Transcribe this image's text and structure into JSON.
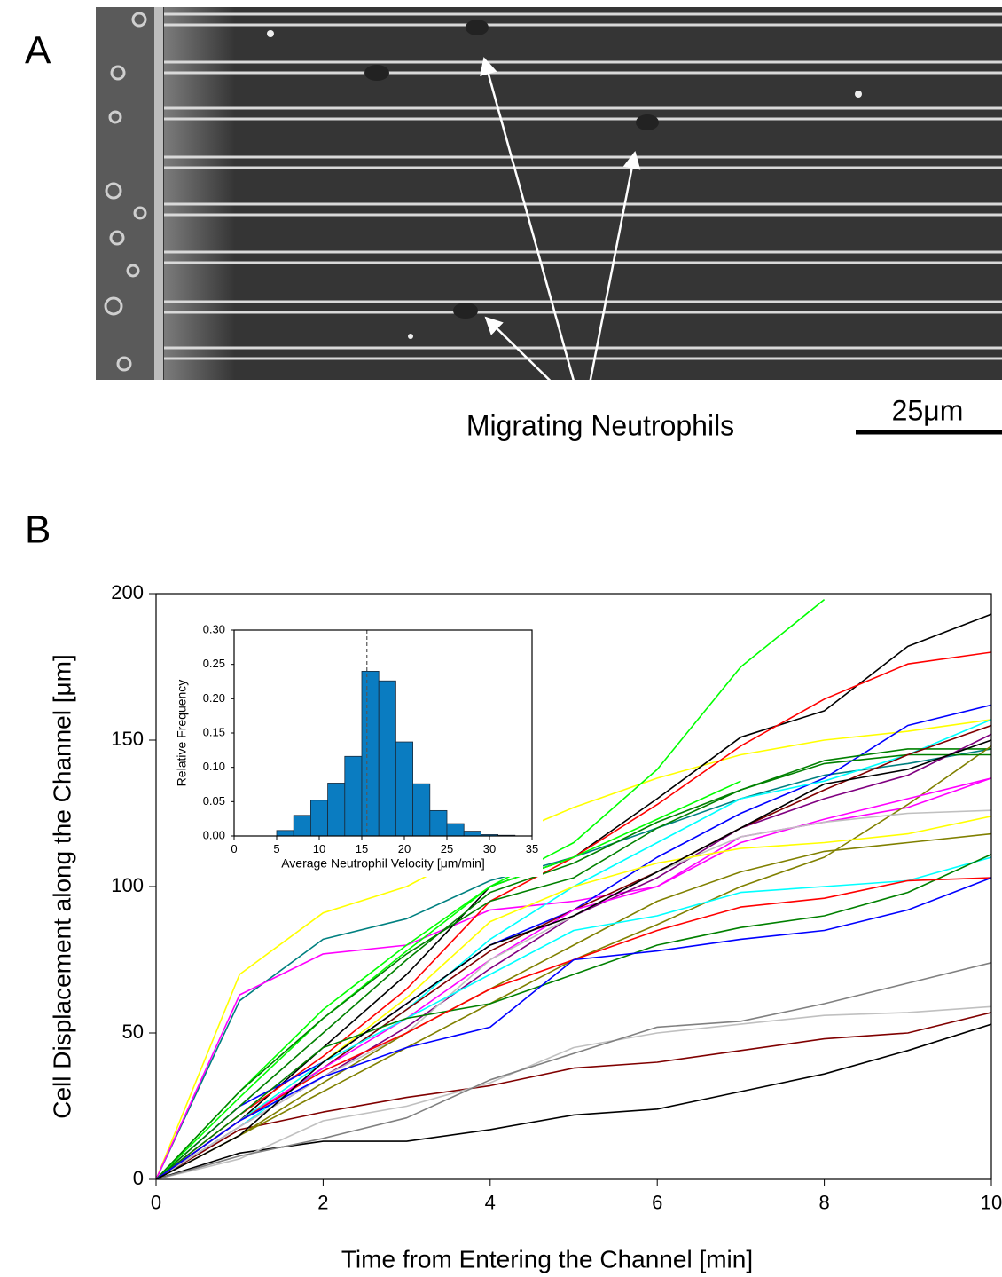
{
  "panels": {
    "a": {
      "label": "A",
      "annotation": "Migrating Neutrophils",
      "scale_bar": "25μm"
    },
    "b": {
      "label": "B"
    }
  },
  "chart_data": [
    {
      "type": "line",
      "x_label": "Time from Entering the Channel [min]",
      "y_label": "Cell Displacement along the Channel [μm]",
      "x": [
        0,
        1,
        2,
        3,
        4,
        5,
        6,
        7,
        8,
        9,
        10
      ],
      "xlim": [
        0,
        10
      ],
      "xticks": [
        0,
        2,
        4,
        6,
        8,
        10
      ],
      "ylim": [
        0,
        200
      ],
      "yticks": [
        0,
        50,
        100,
        150,
        200
      ],
      "series": [
        {
          "color": "#000000",
          "values": [
            0,
            9,
            13,
            13,
            17,
            22,
            24,
            30,
            36,
            44,
            53
          ]
        },
        {
          "color": "#800000",
          "values": [
            0,
            17,
            23,
            28,
            32,
            38,
            40,
            44,
            48,
            50,
            57
          ]
        },
        {
          "color": "#c0c0c0",
          "values": [
            0,
            7,
            20,
            25,
            33,
            45,
            50,
            53,
            56,
            57,
            59
          ]
        },
        {
          "color": "#808080",
          "values": [
            0,
            8,
            14,
            21,
            34,
            43,
            52,
            54,
            60,
            67,
            74
          ]
        },
        {
          "color": "#ffff00",
          "values": [
            0,
            70,
            91,
            100,
            115,
            127,
            137,
            145,
            150,
            153,
            157
          ]
        },
        {
          "color": "#008080",
          "values": [
            0,
            61,
            82,
            89,
            102,
            110,
            120,
            130,
            138,
            142,
            147
          ]
        },
        {
          "color": "#ff00ff",
          "values": [
            0,
            63,
            77,
            80,
            92,
            95,
            100,
            117,
            122,
            127,
            137
          ]
        },
        {
          "color": "#00ff00",
          "values": [
            0,
            30,
            58,
            80,
            100,
            115,
            140,
            175,
            198,
            null,
            null
          ]
        },
        {
          "color": "#000000",
          "values": [
            0,
            20,
            45,
            70,
            100,
            110,
            130,
            151,
            160,
            182,
            193
          ]
        },
        {
          "color": "#ff0000",
          "values": [
            0,
            22,
            42,
            65,
            95,
            110,
            128,
            148,
            164,
            176,
            180
          ]
        },
        {
          "color": "#0000ff",
          "values": [
            0,
            25,
            40,
            60,
            80,
            92,
            110,
            125,
            137,
            155,
            162
          ]
        },
        {
          "color": "#00ffff",
          "values": [
            0,
            18,
            38,
            58,
            82,
            100,
            115,
            130,
            136,
            145,
            157
          ]
        },
        {
          "color": "#008000",
          "values": [
            0,
            25,
            50,
            75,
            98,
            108,
            122,
            133,
            143,
            147,
            147
          ]
        },
        {
          "color": "#00ff00",
          "values": [
            0,
            28,
            55,
            78,
            100,
            110,
            123,
            136,
            null,
            null,
            null
          ]
        },
        {
          "color": "#808000",
          "values": [
            0,
            15,
            30,
            45,
            60,
            75,
            87,
            100,
            110,
            128,
            148
          ]
        },
        {
          "color": "#008000",
          "values": [
            0,
            30,
            55,
            77,
            95,
            103,
            120,
            133,
            142,
            145,
            145
          ]
        },
        {
          "color": "#800080",
          "values": [
            0,
            18,
            35,
            52,
            72,
            90,
            103,
            120,
            130,
            138,
            152
          ]
        },
        {
          "color": "#800000",
          "values": [
            0,
            20,
            38,
            58,
            78,
            92,
            105,
            120,
            133,
            145,
            155
          ]
        },
        {
          "color": "#ff00ff",
          "values": [
            0,
            20,
            38,
            55,
            75,
            92,
            100,
            115,
            123,
            130,
            137
          ]
        },
        {
          "color": "#c0c0c0",
          "values": [
            0,
            18,
            35,
            50,
            75,
            90,
            105,
            117,
            122,
            125,
            126
          ]
        },
        {
          "color": "#ffff00",
          "values": [
            0,
            20,
            40,
            62,
            88,
            100,
            108,
            113,
            115,
            118,
            124
          ]
        },
        {
          "color": "#808000",
          "values": [
            0,
            15,
            33,
            50,
            65,
            80,
            95,
            105,
            112,
            115,
            118
          ]
        },
        {
          "color": "#00ffff",
          "values": [
            0,
            20,
            40,
            55,
            70,
            85,
            90,
            98,
            100,
            102,
            110
          ]
        },
        {
          "color": "#008000",
          "values": [
            0,
            22,
            45,
            55,
            60,
            70,
            80,
            86,
            90,
            98,
            111
          ]
        },
        {
          "color": "#ff0000",
          "values": [
            0,
            20,
            37,
            50,
            65,
            75,
            85,
            93,
            96,
            102,
            103
          ]
        },
        {
          "color": "#0000ff",
          "values": [
            0,
            20,
            35,
            45,
            52,
            75,
            78,
            82,
            85,
            92,
            103
          ]
        },
        {
          "color": "#000000",
          "values": [
            0,
            15,
            40,
            60,
            80,
            90,
            105,
            120,
            135,
            140,
            150
          ]
        }
      ]
    },
    {
      "type": "histogram",
      "x_label": "Average Neutrophil Velocity [μm/min]",
      "y_label": "Relative Frequency",
      "bins": [
        5,
        7,
        9,
        11,
        13,
        15,
        17,
        19,
        21,
        23,
        25,
        27,
        29,
        31,
        33
      ],
      "values": [
        0.008,
        0.03,
        0.052,
        0.077,
        0.116,
        0.24,
        0.226,
        0.137,
        0.076,
        0.037,
        0.018,
        0.007,
        0.002,
        0.001
      ],
      "color": "#0a7cc1",
      "reference_x": 15.6,
      "xlim": [
        0,
        35
      ],
      "xticks": [
        0,
        5,
        10,
        15,
        20,
        25,
        30,
        35
      ],
      "ylim": [
        0,
        0.3
      ],
      "yticks": [
        {
          "value": 0,
          "label": "0.00"
        },
        {
          "value": 0.05,
          "label": "0.05"
        },
        {
          "value": 0.1,
          "label": "0.10"
        },
        {
          "value": 0.15,
          "label": "0.15"
        },
        {
          "value": 0.2,
          "label": "0.20"
        },
        {
          "value": 0.25,
          "label": "0.25"
        },
        {
          "value": 0.3,
          "label": "0.30"
        }
      ]
    }
  ]
}
